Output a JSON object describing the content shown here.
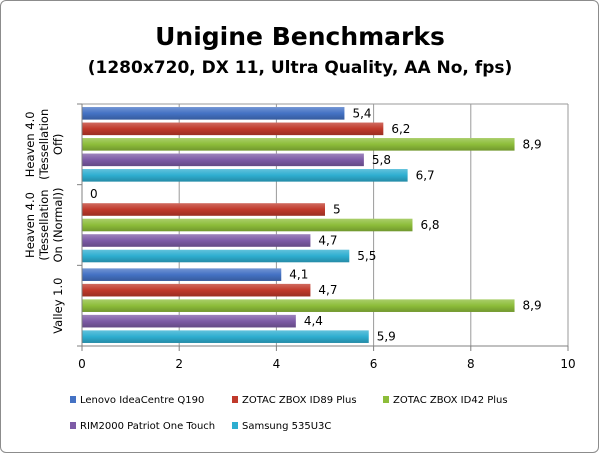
{
  "chart_data": {
    "type": "bar",
    "orientation": "horizontal",
    "title": "Unigine Benchmarks",
    "subtitle": "(1280x720, DX 11, Ultra Quality, AA No, fps)",
    "categories": [
      [
        "Heaven 4.0",
        "(Tessellation",
        "Off)"
      ],
      [
        "Heaven 4.0",
        "(Tessellation",
        "On (Normal))"
      ],
      [
        "Valley 1.0"
      ]
    ],
    "series": [
      {
        "name": "Lenovo IdeaCentre Q190",
        "color": "#4472c4",
        "values": [
          5.4,
          0,
          4.1
        ],
        "labels": [
          "5,4",
          "0",
          "4,1"
        ]
      },
      {
        "name": "ZOTAC ZBOX ID89 Plus",
        "color": "#c0392b",
        "values": [
          6.2,
          5,
          4.7
        ],
        "labels": [
          "6,2",
          "5",
          "4,7"
        ]
      },
      {
        "name": "ZOTAC ZBOX ID42 Plus",
        "color": "#8dbd3a",
        "values": [
          8.9,
          6.8,
          8.9
        ],
        "labels": [
          "8,9",
          "6,8",
          "8,9"
        ]
      },
      {
        "name": "RIM2000 Patriot One Touch",
        "color": "#7d5ba6",
        "values": [
          5.8,
          4.7,
          4.4
        ],
        "labels": [
          "5,8",
          "4,7",
          "4,4"
        ]
      },
      {
        "name": "Samsung 535U3C",
        "color": "#2eaed0",
        "values": [
          6.7,
          5.5,
          5.9
        ],
        "labels": [
          "6,7",
          "5,5",
          "5,9"
        ]
      }
    ],
    "xlim": [
      0,
      10
    ],
    "xticks": [
      "0",
      "2",
      "4",
      "6",
      "8",
      "10"
    ],
    "xlabel": "",
    "ylabel": "",
    "grid": true,
    "legend_position": "bottom"
  }
}
